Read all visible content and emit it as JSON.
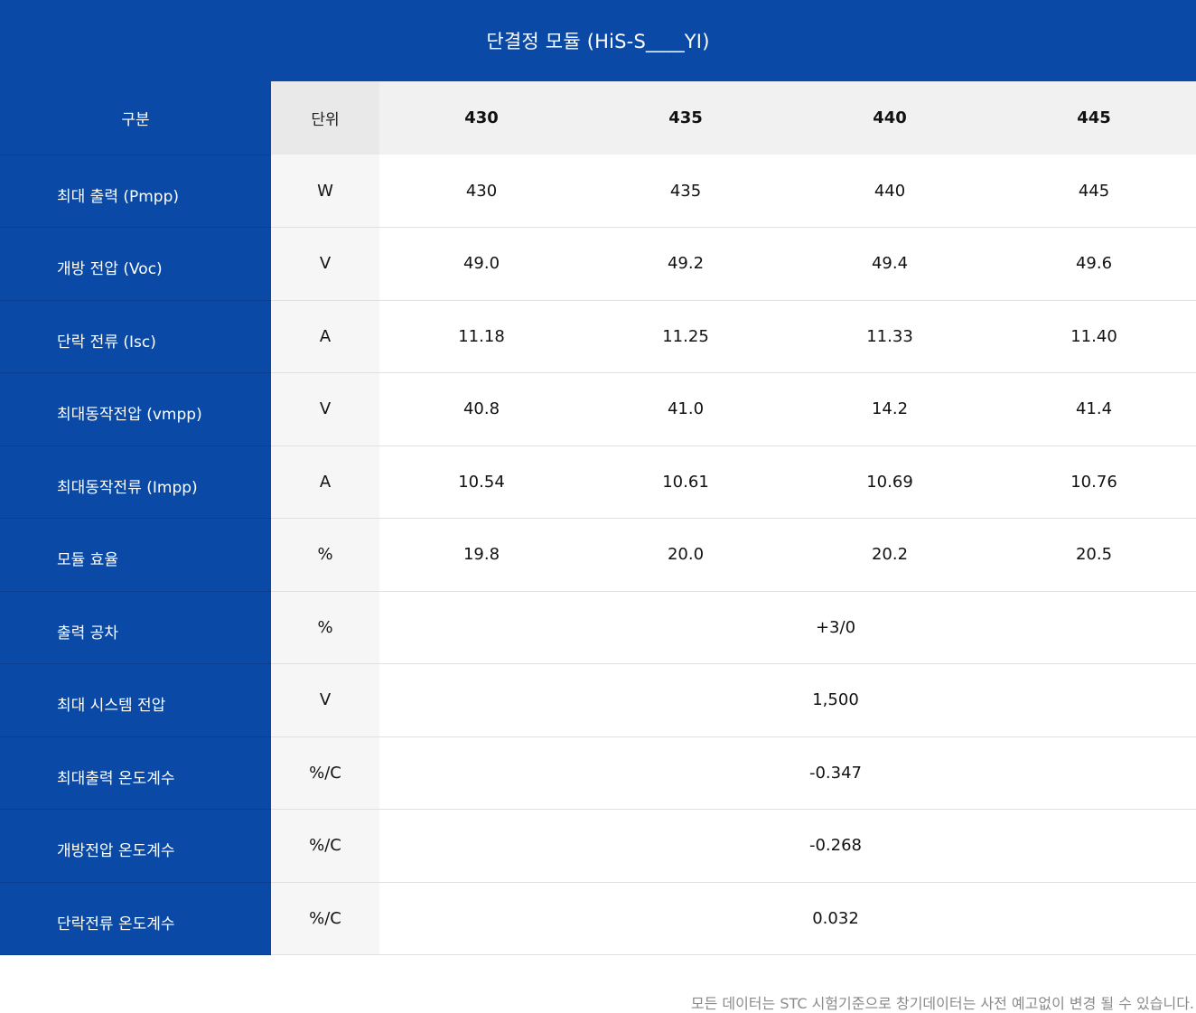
{
  "title": "단결정 모듈 (HiS-S____YI)",
  "header": {
    "label": "구분",
    "unit": "단위",
    "models": [
      "430",
      "435",
      "440",
      "445"
    ]
  },
  "rows": [
    {
      "label": "최대 출력 (Pmpp)",
      "unit": "W",
      "values": [
        "430",
        "435",
        "440",
        "445"
      ]
    },
    {
      "label": "개방 전압 (Voc)",
      "unit": "V",
      "values": [
        "49.0",
        "49.2",
        "49.4",
        "49.6"
      ]
    },
    {
      "label": "단락 전류 (Isc)",
      "unit": "A",
      "values": [
        "11.18",
        "11.25",
        "11.33",
        "11.40"
      ]
    },
    {
      "label": "최대동작전압 (vmpp)",
      "unit": "V",
      "values": [
        "40.8",
        "41.0",
        "14.2",
        "41.4"
      ]
    },
    {
      "label": "최대동작전류 (Impp)",
      "unit": "A",
      "values": [
        "10.54",
        "10.61",
        "10.69",
        "10.76"
      ]
    },
    {
      "label": "모듈 효율",
      "unit": "%",
      "values": [
        "19.8",
        "20.0",
        "20.2",
        "20.5"
      ]
    }
  ],
  "span_rows": [
    {
      "label": "출력 공차",
      "unit": "%",
      "value": "+3/0"
    },
    {
      "label": "최대 시스템 전압",
      "unit": "V",
      "value": "1,500"
    },
    {
      "label": "최대출력 온도계수",
      "unit": "%/C",
      "value": "-0.347"
    },
    {
      "label": "개방전압 온도계수",
      "unit": "%/C",
      "value": "-0.268"
    },
    {
      "label": "단락전류 온도계수",
      "unit": "%/C",
      "value": "0.032"
    }
  ],
  "footnote": "모든 데이터는 STC 시험기준으로 창기데이터는 사전 예고없이 변경 될 수 있습니다."
}
